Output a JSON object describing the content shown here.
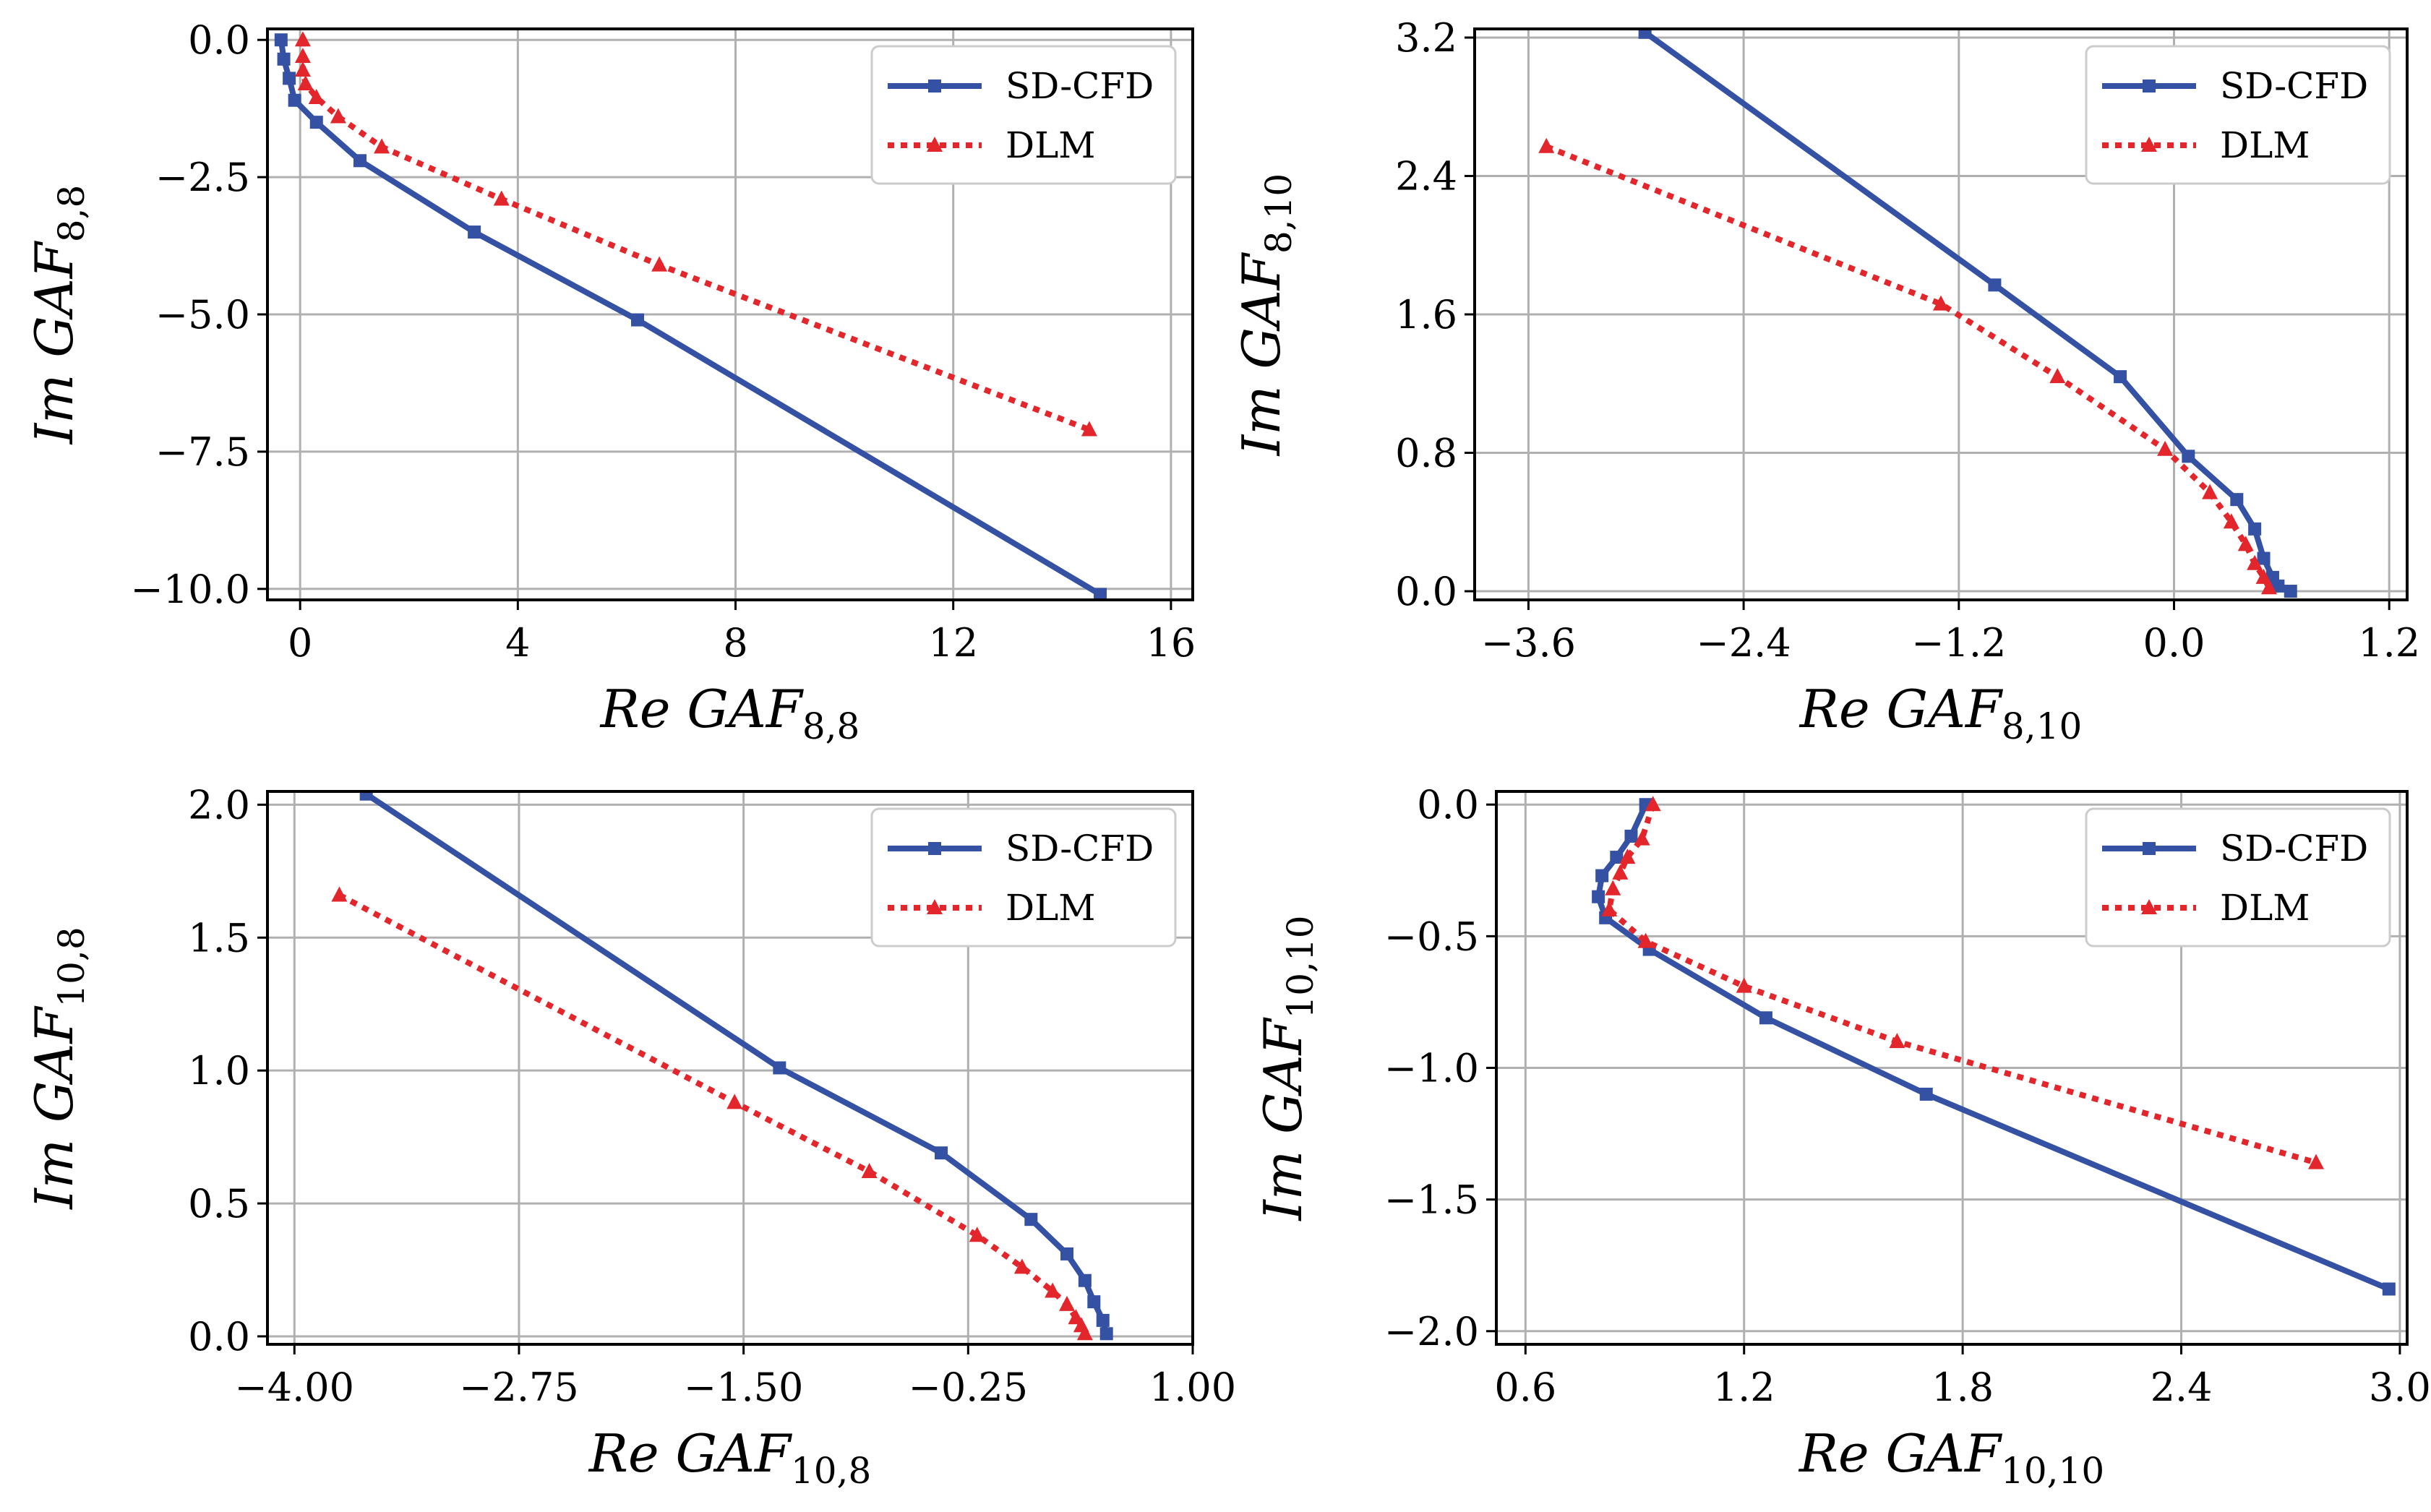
{
  "colors": {
    "sd_cfd": "#3451a3",
    "dlm": "#e3262b",
    "grid": "#b0b0b0"
  },
  "legend": {
    "sd_cfd": "SD-CFD",
    "dlm": "DLM"
  },
  "chart_data": [
    {
      "type": "line",
      "xlabel": {
        "main": "Re GAF",
        "sub": "8,8"
      },
      "ylabel": {
        "main": "Im GAF",
        "sub": "8,8"
      },
      "xlim": [
        -0.6,
        16.4
      ],
      "ylim": [
        -10.2,
        0.2
      ],
      "xticks": [
        0,
        4,
        8,
        12,
        16
      ],
      "yticks": [
        0.0,
        -2.5,
        -5.0,
        -7.5,
        -10.0
      ],
      "xtick_labels": [
        "0",
        "4",
        "8",
        "12",
        "16"
      ],
      "ytick_labels": [
        "0.0",
        "−2.5",
        "−5.0",
        "−7.5",
        "−10.0"
      ],
      "grid": true,
      "legend_position": "top-right",
      "series": [
        {
          "name": "SD-CFD",
          "x": [
            -0.35,
            -0.3,
            -0.2,
            -0.1,
            0.3,
            1.1,
            3.2,
            6.2,
            14.7
          ],
          "y": [
            0.0,
            -0.35,
            -0.7,
            -1.1,
            -1.5,
            -2.2,
            -3.5,
            -5.1,
            -10.1
          ]
        },
        {
          "name": "DLM",
          "x": [
            0.05,
            0.05,
            0.05,
            0.1,
            0.3,
            0.7,
            1.5,
            3.7,
            6.6,
            14.5
          ],
          "y": [
            0.0,
            -0.3,
            -0.55,
            -0.8,
            -1.05,
            -1.4,
            -1.95,
            -2.9,
            -4.1,
            -7.1
          ]
        }
      ]
    },
    {
      "type": "line",
      "xlabel": {
        "main": "Re GAF",
        "sub": "8,10"
      },
      "ylabel": {
        "main": "Im GAF",
        "sub": "8,10"
      },
      "xlim": [
        -3.9,
        1.3
      ],
      "ylim": [
        -0.05,
        3.25
      ],
      "xticks": [
        -3.6,
        -2.4,
        -1.2,
        0.0,
        1.2
      ],
      "yticks": [
        0.0,
        0.8,
        1.6,
        2.4,
        3.2
      ],
      "xtick_labels": [
        "−3.6",
        "−2.4",
        "−1.2",
        "0.0",
        "1.2"
      ],
      "ytick_labels": [
        "0.0",
        "0.8",
        "1.6",
        "2.4",
        "3.2"
      ],
      "grid": true,
      "legend_position": "top-right",
      "series": [
        {
          "name": "SD-CFD",
          "x": [
            -2.95,
            -1.0,
            -0.3,
            0.08,
            0.35,
            0.45,
            0.5,
            0.55,
            0.58,
            0.65
          ],
          "y": [
            3.23,
            1.77,
            1.24,
            0.78,
            0.53,
            0.36,
            0.19,
            0.08,
            0.03,
            0.0
          ]
        },
        {
          "name": "DLM",
          "x": [
            -3.5,
            -1.3,
            -0.65,
            -0.05,
            0.2,
            0.32,
            0.4,
            0.45,
            0.5,
            0.53
          ],
          "y": [
            2.57,
            1.66,
            1.24,
            0.82,
            0.57,
            0.4,
            0.27,
            0.16,
            0.08,
            0.02
          ]
        }
      ]
    },
    {
      "type": "line",
      "xlabel": {
        "main": "Re GAF",
        "sub": "10,8"
      },
      "ylabel": {
        "main": "Im GAF",
        "sub": "10,8"
      },
      "xlim": [
        -4.15,
        1.0
      ],
      "ylim": [
        -0.03,
        2.05
      ],
      "xticks": [
        -4.0,
        -2.75,
        -1.5,
        -0.25,
        1.0
      ],
      "yticks": [
        0.0,
        0.5,
        1.0,
        1.5,
        2.0
      ],
      "xtick_labels": [
        "−4.00",
        "−2.75",
        "−1.50",
        "−0.25",
        "1.00"
      ],
      "ytick_labels": [
        "0.0",
        "0.5",
        "1.0",
        "1.5",
        "2.0"
      ],
      "grid": true,
      "legend_position": "top-right",
      "series": [
        {
          "name": "SD-CFD",
          "x": [
            -3.6,
            -1.3,
            -0.4,
            0.1,
            0.3,
            0.4,
            0.45,
            0.5,
            0.52
          ],
          "y": [
            2.04,
            1.01,
            0.69,
            0.44,
            0.31,
            0.21,
            0.13,
            0.06,
            0.01
          ]
        },
        {
          "name": "DLM",
          "x": [
            -3.75,
            -1.55,
            -0.8,
            -0.2,
            0.05,
            0.22,
            0.3,
            0.35,
            0.38,
            0.4
          ],
          "y": [
            1.66,
            0.88,
            0.62,
            0.38,
            0.26,
            0.17,
            0.12,
            0.07,
            0.04,
            0.01
          ]
        }
      ]
    },
    {
      "type": "line",
      "xlabel": {
        "main": "Re GAF",
        "sub": "10,10"
      },
      "ylabel": {
        "main": "Im GAF",
        "sub": "10,10"
      },
      "xlim": [
        0.52,
        3.02
      ],
      "ylim": [
        -2.05,
        0.05
      ],
      "xticks": [
        0.6,
        1.2,
        1.8,
        2.4,
        3.0
      ],
      "yticks": [
        0.0,
        -0.5,
        -1.0,
        -1.5,
        -2.0
      ],
      "xtick_labels": [
        "0.6",
        "1.2",
        "1.8",
        "2.4",
        "3.0"
      ],
      "ytick_labels": [
        "0.0",
        "−0.5",
        "−1.0",
        "−1.5",
        "−2.0"
      ],
      "grid": true,
      "legend_position": "top-right",
      "series": [
        {
          "name": "SD-CFD",
          "x": [
            0.93,
            0.89,
            0.85,
            0.81,
            0.8,
            0.82,
            0.94,
            1.26,
            1.7,
            2.97
          ],
          "y": [
            0.0,
            -0.12,
            -0.2,
            -0.27,
            -0.35,
            -0.43,
            -0.55,
            -0.81,
            -1.1,
            -1.84
          ]
        },
        {
          "name": "DLM",
          "x": [
            0.95,
            0.92,
            0.88,
            0.86,
            0.84,
            0.83,
            0.93,
            1.2,
            1.62,
            2.77
          ],
          "y": [
            0.0,
            -0.13,
            -0.2,
            -0.26,
            -0.32,
            -0.4,
            -0.52,
            -0.69,
            -0.9,
            -1.36
          ]
        }
      ]
    }
  ]
}
